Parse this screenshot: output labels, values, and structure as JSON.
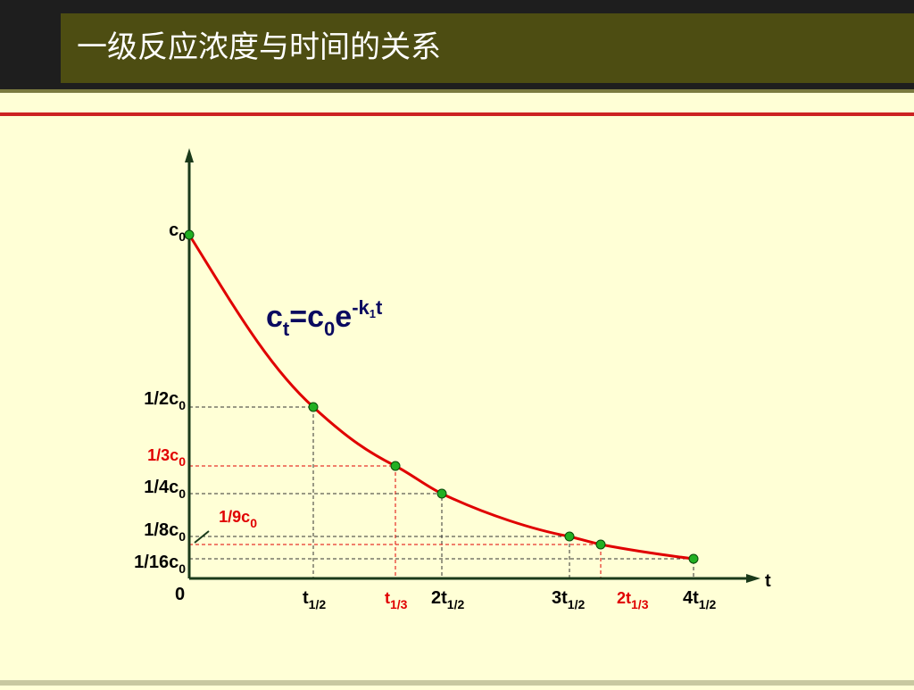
{
  "title": "一级反应浓度与时间的关系",
  "formula": {
    "c": "c",
    "t": "t",
    "eq": "=c",
    "zero": "0",
    "e": "e",
    "exp": "-k",
    "exp_sub": "1",
    "exp_t": "t"
  },
  "y_labels": [
    {
      "text": "c",
      "sub": "0"
    },
    {
      "text": "1/2c",
      "sub": "0"
    },
    {
      "text": "1/3c",
      "sub": "0"
    },
    {
      "text": "1/4c",
      "sub": "0"
    },
    {
      "text": "1/9c",
      "sub": "0"
    },
    {
      "text": "1/8c",
      "sub": "0"
    },
    {
      "text": "1/16c",
      "sub": "0"
    }
  ],
  "x_labels": [
    {
      "text": "t",
      "sub": "1/2"
    },
    {
      "text": "t",
      "sub": "1/3"
    },
    {
      "text": "2t",
      "sub": "1/2"
    },
    {
      "text": "3t",
      "sub": "1/2"
    },
    {
      "text": "2t",
      "sub": "1/3"
    },
    {
      "text": "4t",
      "sub": "1/2"
    }
  ],
  "origin": "0",
  "x_axis": "t"
}
